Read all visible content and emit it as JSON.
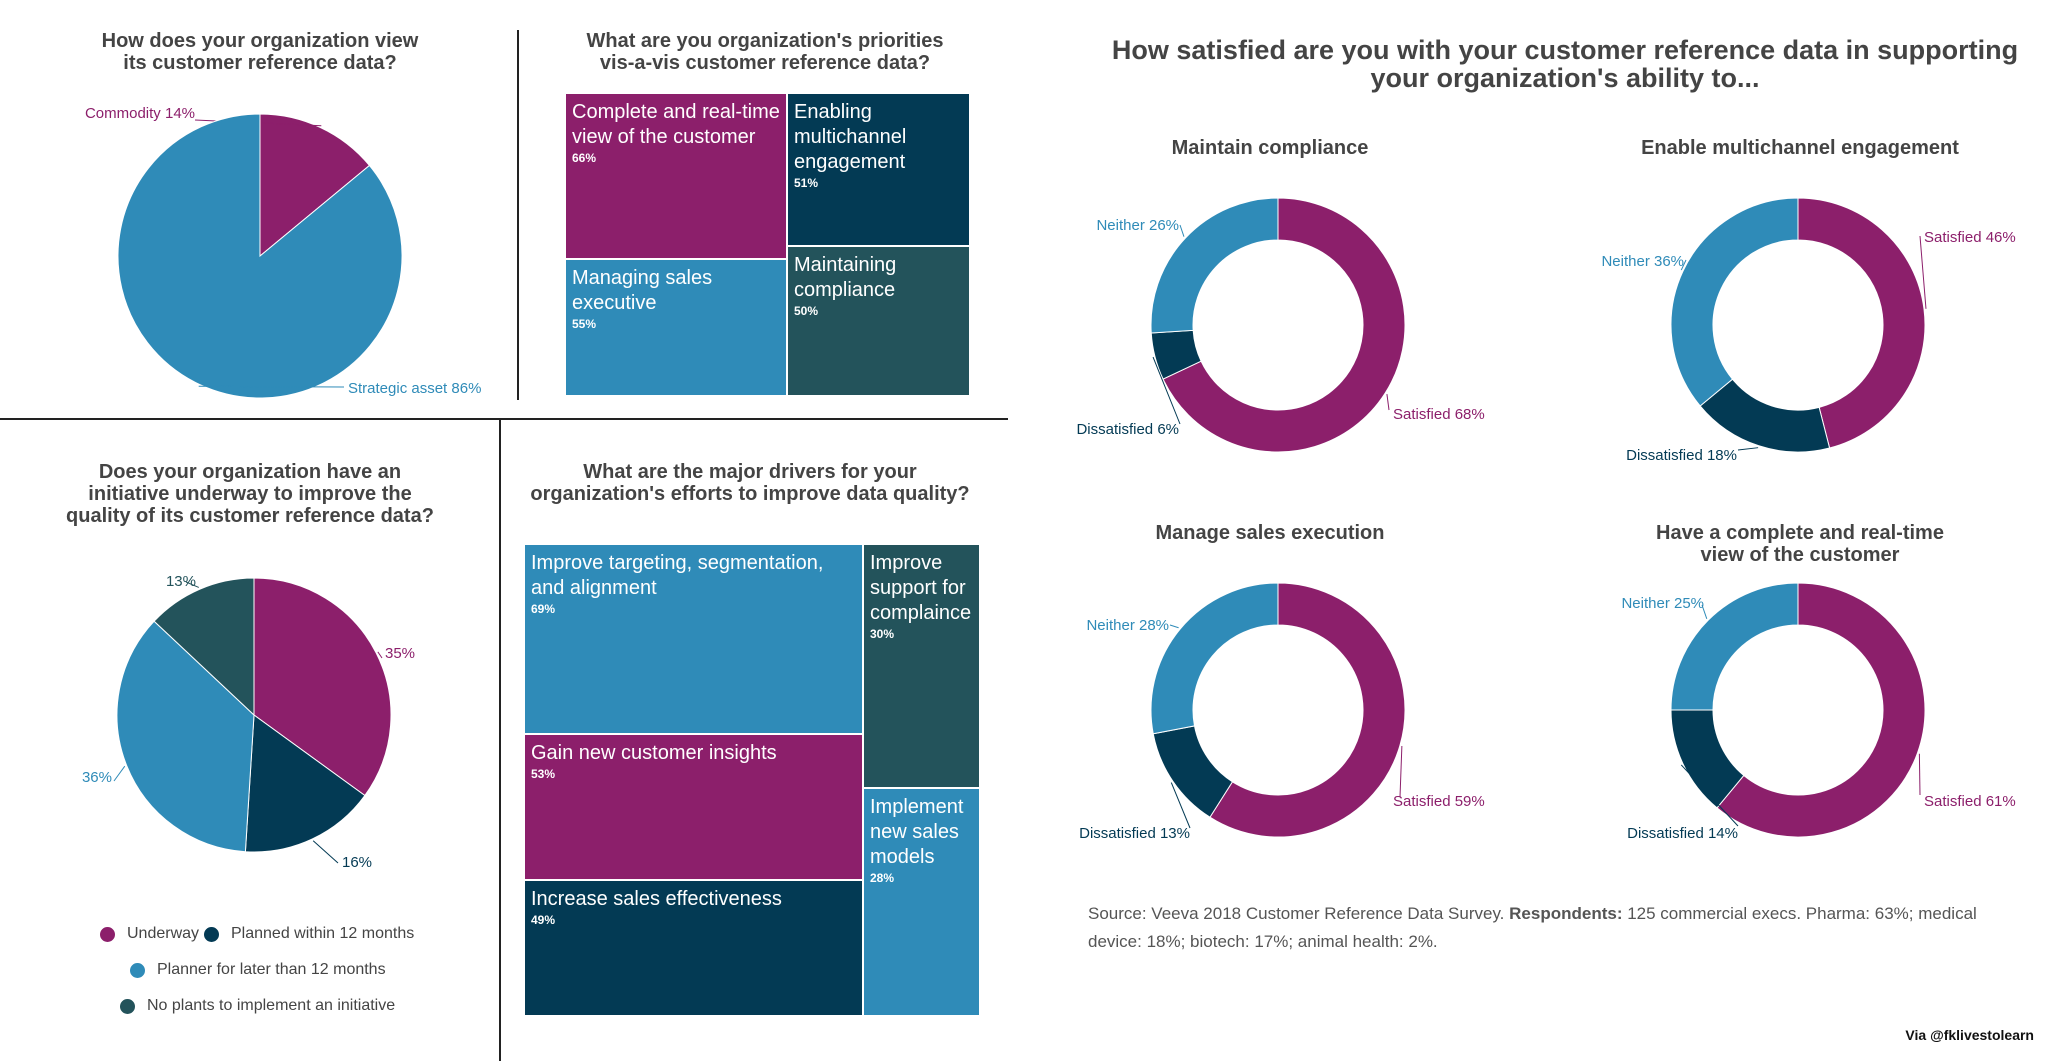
{
  "main_title": "How satisfied are you with your customer reference data in supporting\nyour organization's ability to...",
  "source": {
    "prefix": "Source: Veeva 2018 Customer Reference Data Survey. ",
    "bold": "Respondents:",
    "rest": " 125 commercial execs. Pharma: 63%; medical device: 18%; biotech: 17%; animal health: 2%."
  },
  "credit": "Via @fklivestolearn",
  "colors": {
    "purple": "#8c1f6b",
    "blue": "#2f8bb8",
    "navy": "#033a54",
    "teal": "#23535b"
  },
  "chart_data": [
    {
      "type": "pie",
      "title": "How does your organization view\nits customer reference data?",
      "slices": [
        {
          "label": "Commodity",
          "pct_text": "14%",
          "value": 14,
          "color": "#8c1f6b"
        },
        {
          "label": "Strategic asset",
          "pct_text": "86%",
          "value": 86,
          "color": "#2f8bb8"
        }
      ]
    },
    {
      "type": "treemap",
      "title": "What are you organization's priorities\nvis-a-vis customer reference data?",
      "cells": [
        {
          "label": "Complete and real-time view of the customer",
          "value_text": "66%",
          "value": 66,
          "color": "#8c1f6b"
        },
        {
          "label": "Enabling multichannel engagement",
          "value_text": "51%",
          "value": 51,
          "color": "#033a54"
        },
        {
          "label": "Managing sales executive",
          "value_text": "55%",
          "value": 55,
          "color": "#2f8bb8"
        },
        {
          "label": "Maintaining compliance",
          "value_text": "50%",
          "value": 50,
          "color": "#23535b"
        }
      ]
    },
    {
      "type": "pie",
      "title": "Does your organization have an\ninitiative underway to improve the\nquality of its customer reference data?",
      "slices": [
        {
          "label": "Underway",
          "pct_text": "35%",
          "value": 35,
          "color": "#8c1f6b"
        },
        {
          "label": "Planned within 12 months",
          "pct_text": "16%",
          "value": 16,
          "color": "#033a54"
        },
        {
          "label": "Planner for later than 12 months",
          "pct_text": "36%",
          "value": 36,
          "color": "#2f8bb8"
        },
        {
          "label": "No plants to implement an initiative",
          "pct_text": "13%",
          "value": 13,
          "color": "#23535b"
        }
      ]
    },
    {
      "type": "treemap",
      "title": "What are the major drivers for your\norganization's efforts to improve data quality?",
      "cells": [
        {
          "label": "Improve targeting, segmentation, and alignment",
          "value_text": "69%",
          "value": 69,
          "color": "#2f8bb8"
        },
        {
          "label": "Improve support for complaince",
          "value_text": "30%",
          "value": 30,
          "color": "#23535b"
        },
        {
          "label": "Gain new customer insights",
          "value_text": "53%",
          "value": 53,
          "color": "#8c1f6b"
        },
        {
          "label": "Implement new sales models",
          "value_text": "28%",
          "value": 28,
          "color": "#2f8bb8"
        },
        {
          "label": "Increase sales effectiveness",
          "value_text": "49%",
          "value": 49,
          "color": "#033a54"
        }
      ]
    },
    {
      "type": "donut",
      "title": "Maintain compliance",
      "slices": [
        {
          "label": "Satisfied",
          "pct_text": "68%",
          "value": 68,
          "color": "#8c1f6b"
        },
        {
          "label": "Dissatisfied",
          "pct_text": "6%",
          "value": 6,
          "color": "#033a54"
        },
        {
          "label": "Neither",
          "pct_text": "26%",
          "value": 26,
          "color": "#2f8bb8"
        }
      ]
    },
    {
      "type": "donut",
      "title": "Enable multichannel engagement",
      "slices": [
        {
          "label": "Satisfied",
          "pct_text": "46%",
          "value": 46,
          "color": "#8c1f6b"
        },
        {
          "label": "Dissatisfied",
          "pct_text": "18%",
          "value": 18,
          "color": "#033a54"
        },
        {
          "label": "Neither",
          "pct_text": "36%",
          "value": 36,
          "color": "#2f8bb8"
        }
      ]
    },
    {
      "type": "donut",
      "title": "Manage sales execution",
      "slices": [
        {
          "label": "Satisfied",
          "pct_text": "59%",
          "value": 59,
          "color": "#8c1f6b"
        },
        {
          "label": "Dissatisfied",
          "pct_text": "13%",
          "value": 13,
          "color": "#033a54"
        },
        {
          "label": "Neither",
          "pct_text": "28%",
          "value": 28,
          "color": "#2f8bb8"
        }
      ]
    },
    {
      "type": "donut",
      "title": "Have a complete and real-time\nview of the customer",
      "slices": [
        {
          "label": "Satisfied",
          "pct_text": "61%",
          "value": 61,
          "color": "#8c1f6b"
        },
        {
          "label": "Dissatisfied",
          "pct_text": "14%",
          "value": 14,
          "color": "#033a54"
        },
        {
          "label": "Neither",
          "pct_text": "25%",
          "value": 25,
          "color": "#2f8bb8"
        }
      ]
    }
  ]
}
